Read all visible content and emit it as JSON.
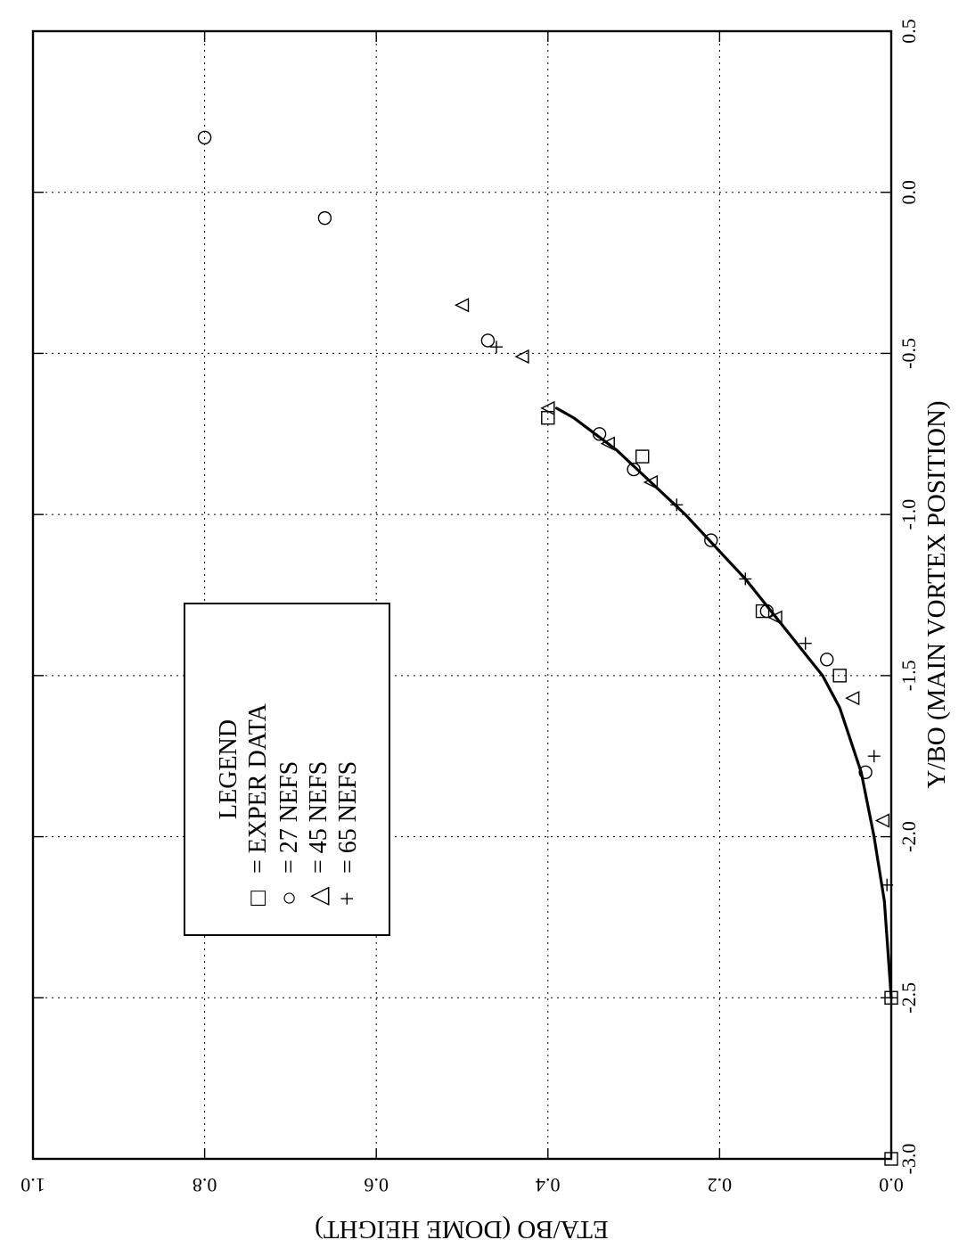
{
  "chart_data": {
    "type": "scatter",
    "orientation": "rotated 90 degrees clockwise",
    "xlabel": "Y/BO (MAIN VORTEX POSITION)",
    "ylabel": "ETA/BO (DOME HEIGHT)",
    "xlim": [
      -3.0,
      0.5
    ],
    "ylim": [
      0.0,
      1.0
    ],
    "x_ticks": [
      "-3.0",
      "-2.5",
      "-2.0",
      "-1.5",
      "-1.0",
      "-0.5",
      "0.0",
      "0.5"
    ],
    "y_ticks": [
      "0.0",
      "0.2",
      "0.4",
      "0.6",
      "0.8",
      "1.0"
    ],
    "grid": true,
    "legend": {
      "title": "LEGEND",
      "entries": [
        {
          "symbol": "□",
          "text": "= EXPER DATA"
        },
        {
          "symbol": "○",
          "text": "= 27 NEFS"
        },
        {
          "symbol": "△",
          "text": "= 45 NEFS"
        },
        {
          "symbol": "+",
          "text": "= 65 NEFS"
        }
      ]
    },
    "series": [
      {
        "name": "EXPER DATA",
        "marker": "square",
        "x": [
          -3.0,
          -2.5,
          -1.5,
          -1.3,
          -0.82,
          -0.7
        ],
        "y": [
          0.0,
          0.0,
          0.06,
          0.15,
          0.29,
          0.4
        ]
      },
      {
        "name": "27 NEFS",
        "marker": "circle",
        "x": [
          -1.8,
          -1.45,
          -1.3,
          -1.08,
          -0.86,
          -0.75,
          -0.46,
          -0.08,
          0.17
        ],
        "y": [
          0.03,
          0.075,
          0.145,
          0.21,
          0.3,
          0.34,
          0.47,
          0.66,
          0.8
        ]
      },
      {
        "name": "45 NEFS",
        "marker": "triangle",
        "x": [
          -1.95,
          -1.57,
          -1.32,
          -0.9,
          -0.78,
          -0.67,
          -0.51,
          -0.35
        ],
        "y": [
          0.01,
          0.045,
          0.135,
          0.28,
          0.33,
          0.4,
          0.43,
          0.5
        ]
      },
      {
        "name": "65 NEFS",
        "marker": "plus",
        "x": [
          -2.5,
          -2.15,
          -1.75,
          -1.4,
          -1.2,
          -0.97,
          -0.48
        ],
        "y": [
          0.0,
          0.005,
          0.02,
          0.1,
          0.17,
          0.25,
          0.46
        ]
      }
    ],
    "curve": {
      "x": [
        -2.5,
        -2.2,
        -2.0,
        -1.8,
        -1.6,
        -1.5,
        -1.4,
        -1.3,
        -1.2,
        -1.1,
        -1.0,
        -0.9,
        -0.8,
        -0.7,
        -0.67
      ],
      "y": [
        0.0,
        0.008,
        0.02,
        0.035,
        0.06,
        0.08,
        0.11,
        0.14,
        0.17,
        0.205,
        0.24,
        0.28,
        0.32,
        0.37,
        0.39
      ]
    }
  }
}
